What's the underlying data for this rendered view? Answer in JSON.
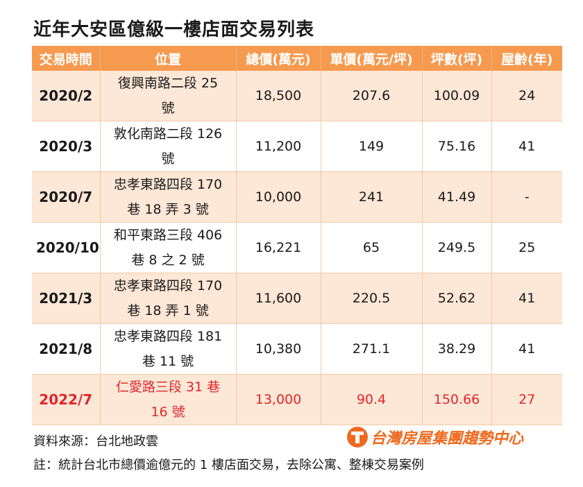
{
  "title": "近年大安區億級一樓店面交易列表",
  "table": {
    "headers": [
      "交易時間",
      "位置",
      "總價(萬元)",
      "單價(萬元/坪)",
      "坪數(坪)",
      "屋齡(年)"
    ],
    "rows": [
      {
        "date": "2020/2",
        "location_line1": "復興南路二段 25",
        "location_line2": "號",
        "total": "18,500",
        "unit": "207.6",
        "area": "100.09",
        "age": "24"
      },
      {
        "date": "2020/3",
        "location_line1": "敦化南路二段 126",
        "location_line2": "號",
        "total": "11,200",
        "unit": "149",
        "area": "75.16",
        "age": "41"
      },
      {
        "date": "2020/7",
        "location_line1": "忠孝東路四段 170",
        "location_line2": "巷 18 弄 3 號",
        "total": "10,000",
        "unit": "241",
        "area": "41.49",
        "age": "-"
      },
      {
        "date": "2020/10",
        "location_line1": "和平東路三段 406",
        "location_line2": "巷 8 之 2 號",
        "total": "16,221",
        "unit": "65",
        "area": "249.5",
        "age": "25"
      },
      {
        "date": "2021/3",
        "location_line1": "忠孝東路四段 170",
        "location_line2": "巷 18 弄 1 號",
        "total": "11,600",
        "unit": "220.5",
        "area": "52.62",
        "age": "41"
      },
      {
        "date": "2021/8",
        "location_line1": "忠孝東路四段 181",
        "location_line2": "巷 11 號",
        "total": "10,380",
        "unit": "271.1",
        "area": "38.29",
        "age": "41"
      },
      {
        "date": "2022/7",
        "location_line1": "仁愛路三段 31 巷",
        "location_line2": "16 號",
        "total": "13,000",
        "unit": "90.4",
        "area": "150.66",
        "age": "27"
      }
    ]
  },
  "source": "資料來源：台北地政雲",
  "note": "註：統計台北市總價逾億元的 1 樓店面交易，去除公寓、整棟交易案例",
  "brand": {
    "name": "台灣房屋集團趨勢中心",
    "logo_icon": "taiwan-realty-logo-icon"
  },
  "colors": {
    "header_bg": "#f59a4f",
    "row_shade": "#fde7d6",
    "highlight_text": "#e0262c",
    "brand": "#ee6a1f"
  }
}
